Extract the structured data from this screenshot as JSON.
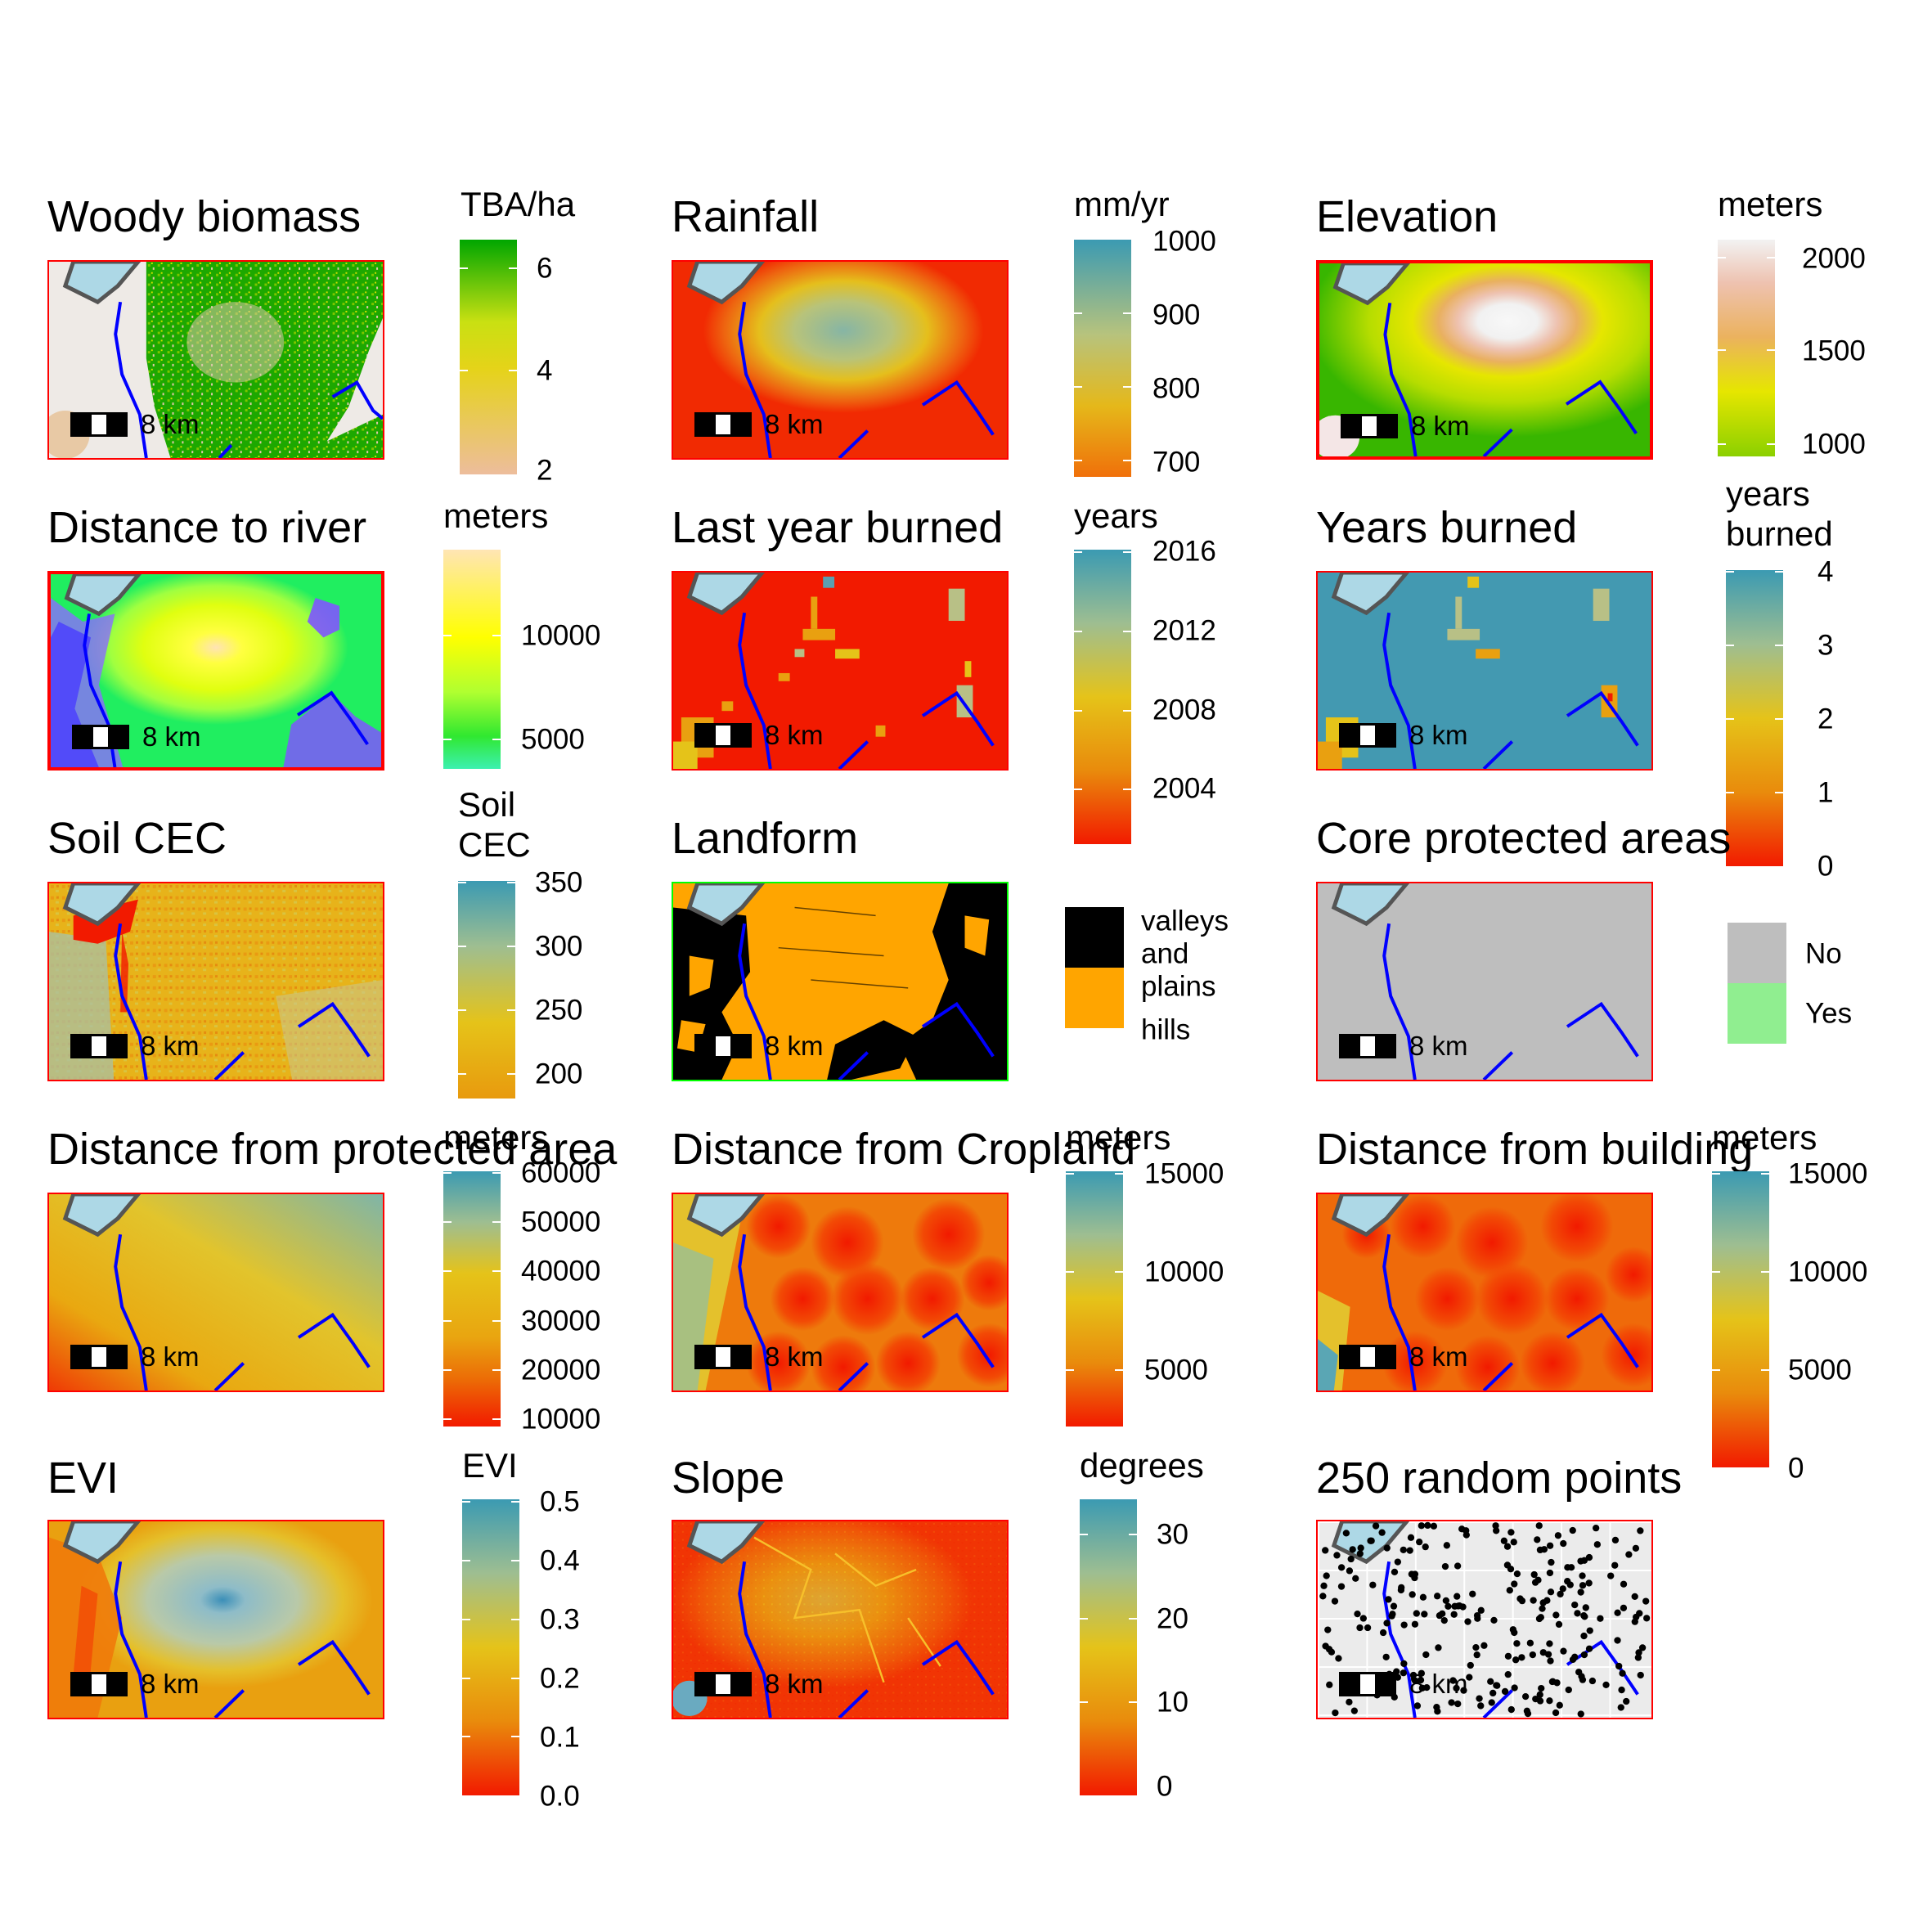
{
  "scale_label": "8 km",
  "panels": {
    "woody": {
      "title": "Woody biomass",
      "legend_title": "TBA/ha",
      "ticks": [
        "6",
        "4",
        "2"
      ]
    },
    "rainfall": {
      "title": "Rainfall",
      "legend_title": "mm/yr",
      "ticks": [
        "1000",
        "900",
        "800",
        "700"
      ]
    },
    "elevation": {
      "title": "Elevation",
      "legend_title": "meters",
      "ticks": [
        "2000",
        "1500",
        "1000"
      ]
    },
    "river": {
      "title": "Distance to river",
      "legend_title": "meters",
      "ticks": [
        "10000",
        "5000"
      ]
    },
    "lastburn": {
      "title": "Last year burned",
      "legend_title": "years",
      "ticks": [
        "2016",
        "2012",
        "2008",
        "2004"
      ]
    },
    "yearsburn": {
      "title": "Years burned",
      "legend_title_line1": "years",
      "legend_title_line2": "burned",
      "ticks": [
        "4",
        "3",
        "2",
        "1",
        "0"
      ]
    },
    "soil": {
      "title": "Soil CEC",
      "legend_title_line1": "Soil",
      "legend_title_line2": "CEC",
      "ticks": [
        "350",
        "300",
        "250",
        "200"
      ]
    },
    "landform": {
      "title": "Landform",
      "legend": [
        {
          "label_lines": [
            "valleys",
            "and",
            "plains"
          ],
          "color": "#000000"
        },
        {
          "label_lines": [
            "hills"
          ],
          "color": "#ffa500"
        }
      ]
    },
    "core": {
      "title": "Core protected areas",
      "legend": [
        {
          "label": "No",
          "color": "#bebebe"
        },
        {
          "label": "Yes",
          "color": "#90ee90"
        }
      ]
    },
    "protdist": {
      "title": "Distance from protected area",
      "legend_title": "meters",
      "ticks": [
        "60000",
        "50000",
        "40000",
        "30000",
        "20000",
        "10000"
      ]
    },
    "cropdist": {
      "title": "Distance from Cropland",
      "legend_title": "meters",
      "ticks": [
        "15000",
        "10000",
        "5000"
      ]
    },
    "builddist": {
      "title": "Distance from building",
      "legend_title": "meters",
      "ticks": [
        "15000",
        "10000",
        "5000",
        "0"
      ]
    },
    "evi": {
      "title": "EVI",
      "legend_title": "EVI",
      "ticks": [
        "0.5",
        "0.4",
        "0.3",
        "0.2",
        "0.1",
        "0.0"
      ]
    },
    "slope": {
      "title": "Slope",
      "legend_title": "degrees",
      "ticks": [
        "30",
        "20",
        "10",
        "0"
      ]
    },
    "points": {
      "title": "250 random points"
    }
  },
  "colors": {
    "panel_border": "#ff0000",
    "landform_border": "#00ff00",
    "river": "#0000ff",
    "lake_fill": "#add8e6",
    "lake_outline": "#555555",
    "low": "#ee2200",
    "mid": "#e5bb1a",
    "high": "#4298b5"
  }
}
